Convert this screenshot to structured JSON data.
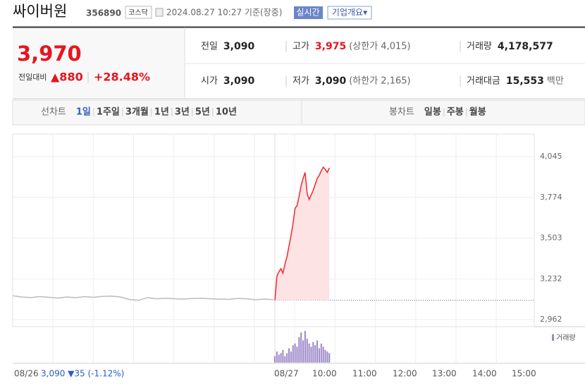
{
  "header": {
    "name": "싸이버원",
    "code": "356890",
    "market": "코스닥",
    "time": "2024.08.27 10:27 기준(장중)",
    "realtime": "실시간",
    "company": "기업개요▾"
  },
  "summary": {
    "price": "3,970",
    "change_label": "전일대비",
    "change": "▲880",
    "rate": "+28.48%",
    "items": [
      {
        "label": "전일",
        "value": "3,090",
        "note": ""
      },
      {
        "label": "고가",
        "value": "3,975",
        "note": "(상한가 4,015)"
      },
      {
        "label": "거래량",
        "value": "4,178,577",
        "note": ""
      },
      {
        "label": "시가",
        "value": "3,090",
        "note": ""
      },
      {
        "label": "저가",
        "value": "3,090",
        "note": "(하한가 2,165)"
      },
      {
        "label": "거래대금",
        "value": "15,553",
        "note": "백만"
      }
    ]
  },
  "tabs": {
    "line_label": "선차트",
    "line_tabs": [
      "1일",
      "1주일",
      "3개월",
      "1년",
      "3년",
      "5년",
      "10년"
    ],
    "candle_label": "봉차트",
    "candle_tabs": [
      "일봉",
      "주봉",
      "월봉"
    ]
  },
  "chart_data": {
    "type": "line",
    "ylim": [
      2915,
      4195
    ],
    "yticks": [
      {
        "value": 4045,
        "label": "4,045"
      },
      {
        "value": 3774,
        "label": "3,774"
      },
      {
        "value": 3503,
        "label": "3,503"
      },
      {
        "value": 3232,
        "label": "3,232"
      },
      {
        "value": 2962,
        "label": "2,962"
      }
    ],
    "x_labels": [
      "08/26",
      "08/27",
      "10:00",
      "11:00",
      "12:00",
      "13:00",
      "14:00",
      "15:00"
    ],
    "prev_info": "3,090 ▼35 (-1.12%)",
    "volume_label": "거래량",
    "series": [
      {
        "name": "08/26",
        "color": "#bbbbbb",
        "values": [
          3120,
          3112,
          3108,
          3115,
          3110,
          3105,
          3112,
          3108,
          3114,
          3110,
          3116,
          3118,
          3112,
          3095,
          3090,
          3108,
          3100,
          3104,
          3100,
          3098,
          3102,
          3104,
          3100,
          3098,
          3096,
          3102,
          3100,
          3094,
          3098,
          3094
        ]
      },
      {
        "name": "08/27",
        "color": "#f0282d",
        "values": [
          3090,
          3250,
          3280,
          3300,
          3270,
          3330,
          3380,
          3450,
          3520,
          3600,
          3700,
          3720,
          3780,
          3850,
          3900,
          3940,
          3800,
          3760,
          3790,
          3820,
          3860,
          3900,
          3920,
          3950,
          3975,
          3960,
          3940,
          3970
        ]
      }
    ],
    "volume": [
      20,
      35,
      25,
      30,
      40,
      20,
      30,
      45,
      35,
      55,
      60,
      50,
      80,
      95,
      70,
      100,
      75,
      60,
      50,
      65,
      55,
      70,
      45,
      60,
      50,
      40,
      35,
      30
    ],
    "volume_color": "#9b86c8",
    "base": 3090
  }
}
